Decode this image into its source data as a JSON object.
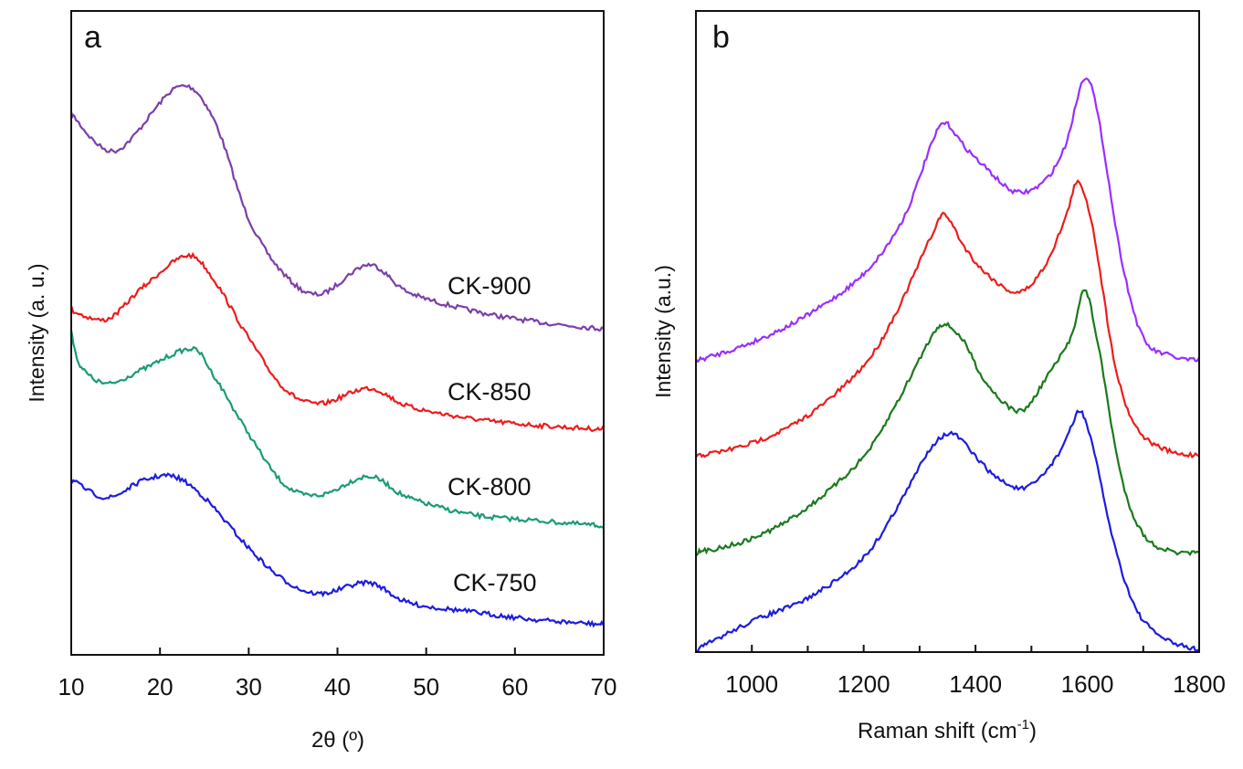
{
  "chart_data": [
    {
      "panel_label": "a",
      "type": "line",
      "xlabel": "2θ (º)",
      "ylabel": "Intensity (a. u.)",
      "xlim": [
        10,
        70
      ],
      "ylim": [
        0,
        100
      ],
      "xticks": [
        10,
        20,
        30,
        40,
        50,
        60,
        70
      ],
      "grid": false,
      "series": [
        {
          "name": "CK-900",
          "color": "#7b3fa8",
          "x": [
            10,
            15,
            22,
            26,
            30,
            34,
            38,
            43.5,
            48,
            55,
            62,
            70
          ],
          "y": [
            84.0,
            78.3,
            88.2,
            83.3,
            67.7,
            59.1,
            56.0,
            60.6,
            56.3,
            53.5,
            51.8,
            50.6
          ]
        },
        {
          "name": "CK-850",
          "color": "#ee1c1c",
          "x": [
            10,
            14,
            18,
            23,
            26,
            30,
            34,
            38,
            43.5,
            48,
            55,
            62,
            70
          ],
          "y": [
            53.5,
            52.1,
            57.0,
            62.0,
            58.4,
            49.2,
            41.4,
            39.0,
            41.4,
            38.6,
            36.7,
            35.7,
            35.0
          ]
        },
        {
          "name": "CK-800",
          "color": "#1b9a78",
          "x": [
            10,
            11,
            14,
            18,
            23.5,
            26,
            30,
            34,
            38,
            43.5,
            48,
            55,
            62,
            70
          ],
          "y": [
            50.6,
            45.0,
            42.1,
            44.3,
            47.5,
            43.5,
            34.3,
            26.5,
            24.8,
            27.7,
            24.4,
            21.8,
            20.9,
            20.0
          ]
        },
        {
          "name": "CK-750",
          "color": "#1c1ce0",
          "x": [
            10,
            14,
            18,
            21.5,
            25,
            30,
            34,
            38,
            43.5,
            48,
            55,
            62,
            70
          ],
          "y": [
            27.2,
            24.4,
            27.0,
            27.7,
            24.4,
            16.6,
            11.6,
            9.5,
            11.2,
            8.1,
            6.7,
            5.5,
            4.7
          ]
        }
      ]
    },
    {
      "panel_label": "b",
      "type": "line",
      "xlabel": "Raman shift (cm",
      "xlabel_sup": "-1",
      "xlabel_tail": ")",
      "ylabel": "Intensity (a.u.)",
      "xlim": [
        900,
        1800
      ],
      "ylim": [
        0,
        100
      ],
      "xticks": [
        1000,
        1200,
        1400,
        1600,
        1800
      ],
      "minor_xticks": [
        1100,
        1300,
        1500,
        1700
      ],
      "grid": false,
      "series": [
        {
          "color": "#9a2eff",
          "x": [
            900,
            1000,
            1100,
            1200,
            1270,
            1320,
            1345,
            1380,
            1420,
            1470,
            1520,
            1560,
            1595,
            1620,
            1660,
            1700,
            1750,
            1800
          ],
          "y": [
            45.4,
            48.3,
            52.6,
            59.0,
            67.5,
            78.9,
            82.5,
            78.9,
            75.4,
            71.8,
            73.2,
            78.9,
            89.6,
            83.2,
            61.8,
            49.0,
            46.2,
            45.4
          ]
        },
        {
          "color": "#ee1c1c",
          "x": [
            900,
            1000,
            1100,
            1200,
            1260,
            1320,
            1345,
            1380,
            1420,
            1475,
            1520,
            1560,
            1583,
            1610,
            1650,
            1690,
            1750,
            1800
          ],
          "y": [
            30.5,
            32.6,
            36.9,
            44.7,
            53.3,
            64.7,
            68.2,
            63.2,
            59.0,
            56.1,
            59.7,
            67.5,
            73.2,
            66.1,
            44.7,
            34.8,
            31.2,
            30.8
          ]
        },
        {
          "color": "#1a7a1a",
          "x": [
            900,
            1000,
            1100,
            1200,
            1260,
            1320,
            1345,
            1380,
            1420,
            1480,
            1530,
            1570,
            1595,
            1620,
            1660,
            1700,
            1750,
            1800
          ],
          "y": [
            15.5,
            17.7,
            22.6,
            30.5,
            39.0,
            49.0,
            51.1,
            48.3,
            41.9,
            37.6,
            43.3,
            49.0,
            56.4,
            47.6,
            27.6,
            18.4,
            15.7,
            15.4
          ]
        },
        {
          "color": "#1c1ce0",
          "x": [
            900,
            1000,
            1100,
            1200,
            1270,
            1320,
            1360,
            1400,
            1440,
            1490,
            1540,
            1570,
            1588,
            1610,
            1650,
            1690,
            1740,
            1800
          ],
          "y": [
            0.3,
            4.8,
            8.4,
            14.8,
            24.1,
            31.9,
            34.0,
            30.5,
            27.1,
            25.6,
            29.8,
            34.8,
            37.6,
            31.9,
            16.2,
            6.3,
            2.0,
            0.3
          ]
        }
      ]
    }
  ]
}
